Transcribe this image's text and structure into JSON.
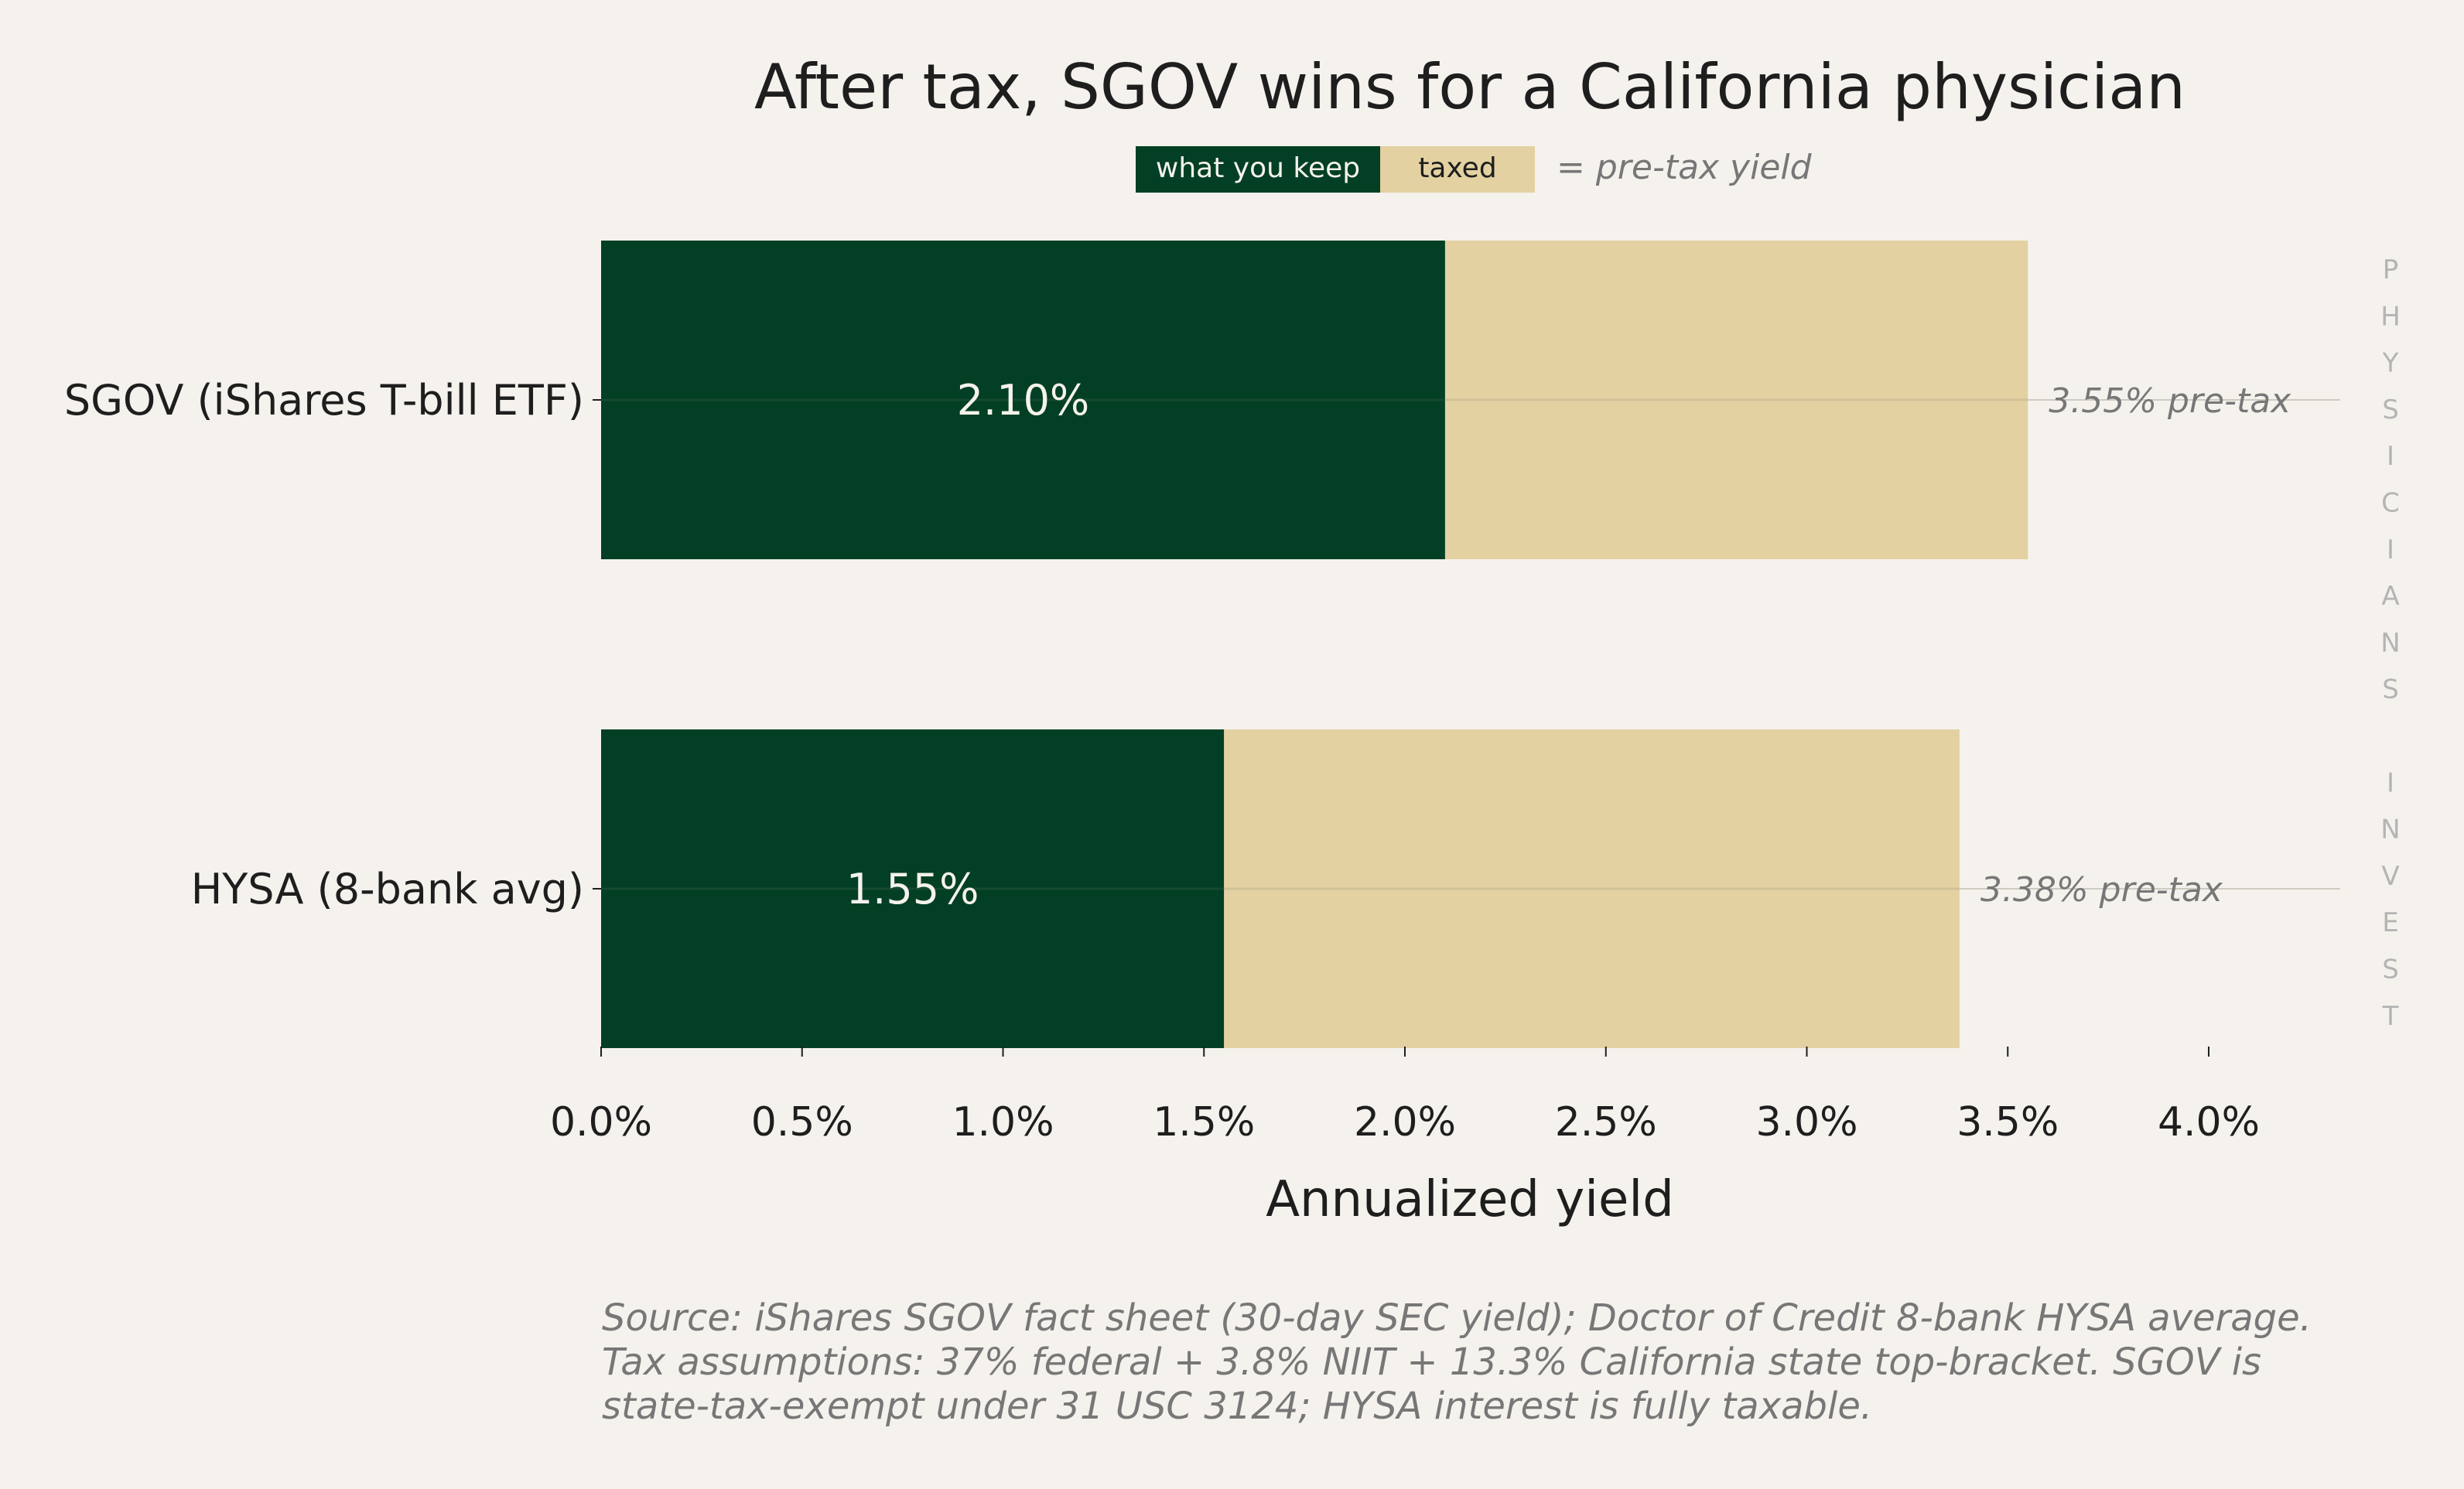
{
  "chart_data": {
    "type": "bar",
    "orientation": "horizontal",
    "stacked": true,
    "title": "After tax, SGOV wins for a California physician",
    "categories": [
      "SGOV (iShares T-bill ETF)",
      "HYSA (8-bank avg)"
    ],
    "series": [
      {
        "name": "what you keep",
        "values": [
          2.1,
          1.55
        ],
        "color": "#023f24"
      },
      {
        "name": "taxed",
        "values": [
          1.45,
          1.83
        ],
        "color": "#e3d1a2"
      }
    ],
    "totals": [
      3.55,
      3.38
    ],
    "bar_labels": [
      "2.10%",
      "1.55%"
    ],
    "total_labels": [
      "3.55% pre-tax",
      "3.38% pre-tax"
    ],
    "legend": {
      "items": [
        "what you keep",
        "taxed"
      ],
      "note": "= pre-tax yield",
      "placement": "top-center"
    },
    "xlabel": "Annualized yield",
    "ylabel": "",
    "xlim": [
      0,
      4.35
    ],
    "xticks": [
      0,
      0.5,
      1.0,
      1.5,
      2.0,
      2.5,
      3.0,
      3.5,
      4.0
    ],
    "xtick_labels": [
      "0.0%",
      "0.5%",
      "1.0%",
      "1.5%",
      "2.0%",
      "2.5%",
      "3.0%",
      "3.5%",
      "4.0%"
    ],
    "grid": false
  },
  "watermark": "PHYSICIANS INVEST",
  "source_lines": [
    "Source: iShares SGOV fact sheet (30-day SEC yield); Doctor of Credit 8-bank HYSA average.",
    "Tax assumptions: 37% federal + 3.8% NIIT + 13.3% California state top-bracket. SGOV is",
    "state-tax-exempt under 31 USC 3124; HYSA interest is fully taxable."
  ],
  "colors": {
    "background": "#f5f2ed",
    "keep": "#023f24",
    "taxed": "#e3d1a2",
    "muted": "#777777",
    "text": "#1e1e1e"
  }
}
